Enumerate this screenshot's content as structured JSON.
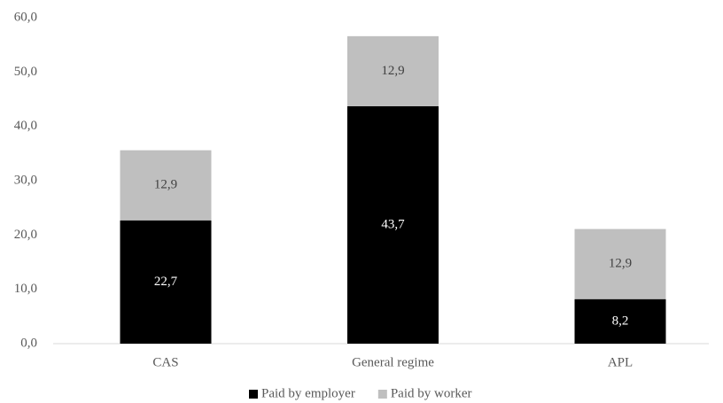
{
  "chart_data": {
    "type": "stacked-bar",
    "categories": [
      "CAS",
      "General regime",
      "APL"
    ],
    "series": [
      {
        "name": "Paid by employer",
        "color": "#000000",
        "values": [
          22.7,
          43.7,
          8.2
        ],
        "value_labels": [
          "22,7",
          "43,7",
          "8,2"
        ],
        "label_color": "#ffffff"
      },
      {
        "name": "Paid by worker",
        "color": "#bfbfbf",
        "values": [
          12.9,
          12.9,
          12.9
        ],
        "value_labels": [
          "12,9",
          "12,9",
          "12,9"
        ],
        "label_color": "#404040"
      }
    ],
    "ylim": [
      0,
      60
    ],
    "yticks": [
      {
        "value": 0,
        "label": "0,0"
      },
      {
        "value": 10,
        "label": "10,0"
      },
      {
        "value": 20,
        "label": "20,0"
      },
      {
        "value": 30,
        "label": "30,0"
      },
      {
        "value": 40,
        "label": "40,0"
      },
      {
        "value": 50,
        "label": "50,0"
      },
      {
        "value": 60,
        "label": "60,0"
      }
    ],
    "grid": false,
    "legend": "bottom"
  }
}
